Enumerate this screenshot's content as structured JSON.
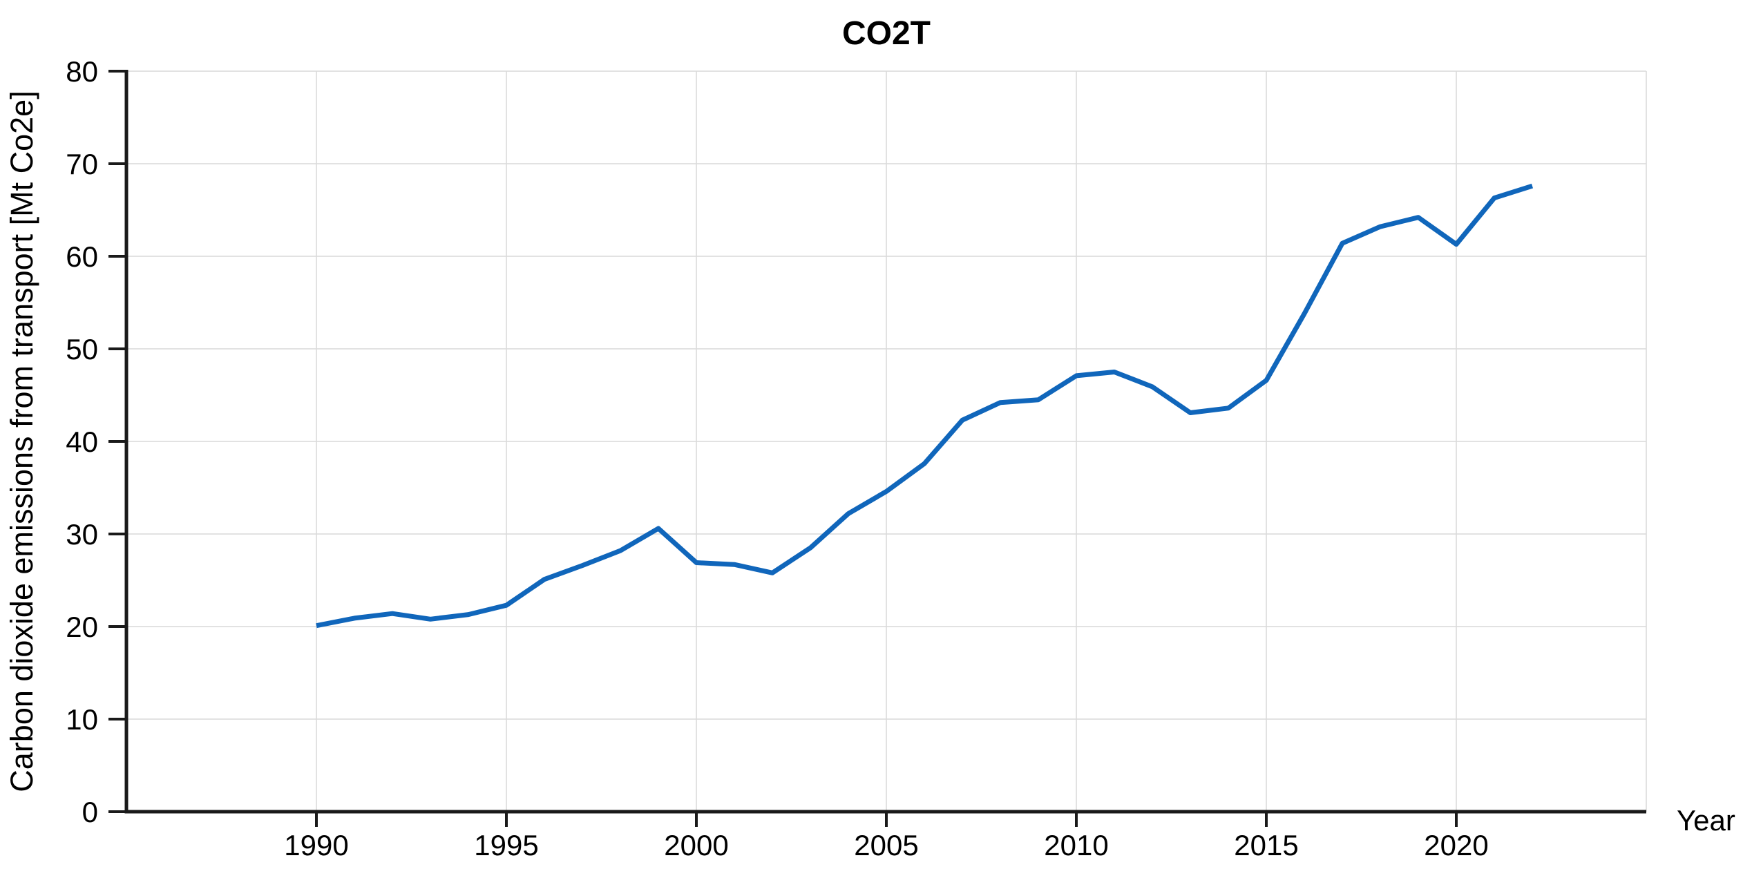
{
  "chart_data": {
    "type": "line",
    "title": "CO2T",
    "xlabel": "Year",
    "ylabel": "Carbon dioxide emissions from transport [Mt Co2e]",
    "x": [
      1990,
      1991,
      1992,
      1993,
      1994,
      1995,
      1996,
      1997,
      1998,
      1999,
      2000,
      2001,
      2002,
      2003,
      2004,
      2005,
      2006,
      2007,
      2008,
      2009,
      2010,
      2011,
      2012,
      2013,
      2014,
      2015,
      2016,
      2017,
      2018,
      2019,
      2020,
      2021,
      2022
    ],
    "series": [
      {
        "name": "CO2T",
        "values": [
          20.1,
          20.9,
          21.4,
          20.8,
          21.3,
          22.3,
          25.1,
          26.6,
          28.2,
          30.6,
          26.9,
          26.7,
          25.8,
          28.5,
          32.2,
          34.6,
          37.6,
          42.3,
          44.2,
          44.5,
          47.1,
          47.5,
          45.9,
          43.1,
          43.6,
          46.6,
          53.8,
          61.4,
          63.2,
          64.2,
          61.3,
          66.3,
          67.6
        ]
      }
    ],
    "xlim": [
      1985,
      2025
    ],
    "ylim": [
      0,
      80
    ],
    "xticks": [
      1990,
      1995,
      2000,
      2005,
      2010,
      2015,
      2020
    ],
    "yticks": [
      0,
      10,
      20,
      30,
      40,
      50,
      60,
      70,
      80
    ],
    "grid": true,
    "legend": "none",
    "line_color": "#1066bb",
    "grid_color": "#d9d9d9",
    "axis_color": "#1a1a1a",
    "text_color": "#000000",
    "background": "#ffffff"
  }
}
